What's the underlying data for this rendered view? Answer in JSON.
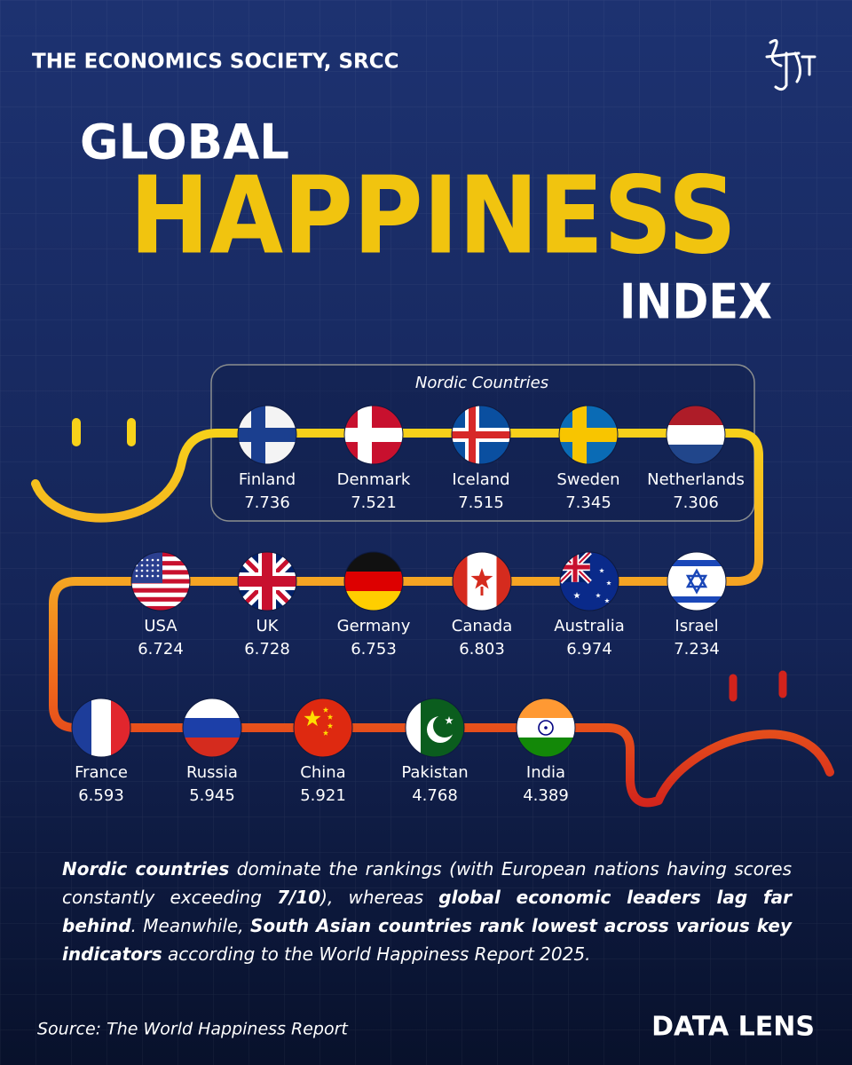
{
  "header": {
    "org": "THE ECONOMICS SOCIETY, SRCC"
  },
  "title": {
    "line1": "GLOBAL",
    "line2": "HAPPINESS",
    "line3": "INDEX"
  },
  "group_label": "Nordic Countries",
  "rows": [
    [
      {
        "name": "Finland",
        "score": 7.736
      },
      {
        "name": "Denmark",
        "score": 7.521
      },
      {
        "name": "Iceland",
        "score": 7.515
      },
      {
        "name": "Sweden",
        "score": 7.345
      },
      {
        "name": "Netherlands",
        "score": 7.306
      }
    ],
    [
      {
        "name": "USA",
        "score": 6.724
      },
      {
        "name": "UK",
        "score": 6.728
      },
      {
        "name": "Germany",
        "score": 6.753
      },
      {
        "name": "Canada",
        "score": 6.803
      },
      {
        "name": "Australia",
        "score": 6.974
      },
      {
        "name": "Israel",
        "score": 7.234
      }
    ],
    [
      {
        "name": "France",
        "score": 6.593
      },
      {
        "name": "Russia",
        "score": 5.945
      },
      {
        "name": "China",
        "score": 5.921
      },
      {
        "name": "Pakistan",
        "score": 4.768
      },
      {
        "name": "India",
        "score": 4.389
      }
    ]
  ],
  "summary": [
    {
      "text": "Nordic countries",
      "bold": true
    },
    {
      "text": " dominate the rankings (with European nations having scores constantly exceeding ",
      "bold": false
    },
    {
      "text": "7/10",
      "bold": true
    },
    {
      "text": "), whereas ",
      "bold": false
    },
    {
      "text": "global economic leaders lag far behind",
      "bold": true
    },
    {
      "text": ". Meanwhile, ",
      "bold": false
    },
    {
      "text": "South Asian countries rank lowest across various key indicators",
      "bold": true
    },
    {
      "text": " according to the World Happiness Report 2025.",
      "bold": false
    }
  ],
  "footer": {
    "source": "Source: The World Happiness Report",
    "brand": "DATA LENS"
  }
}
